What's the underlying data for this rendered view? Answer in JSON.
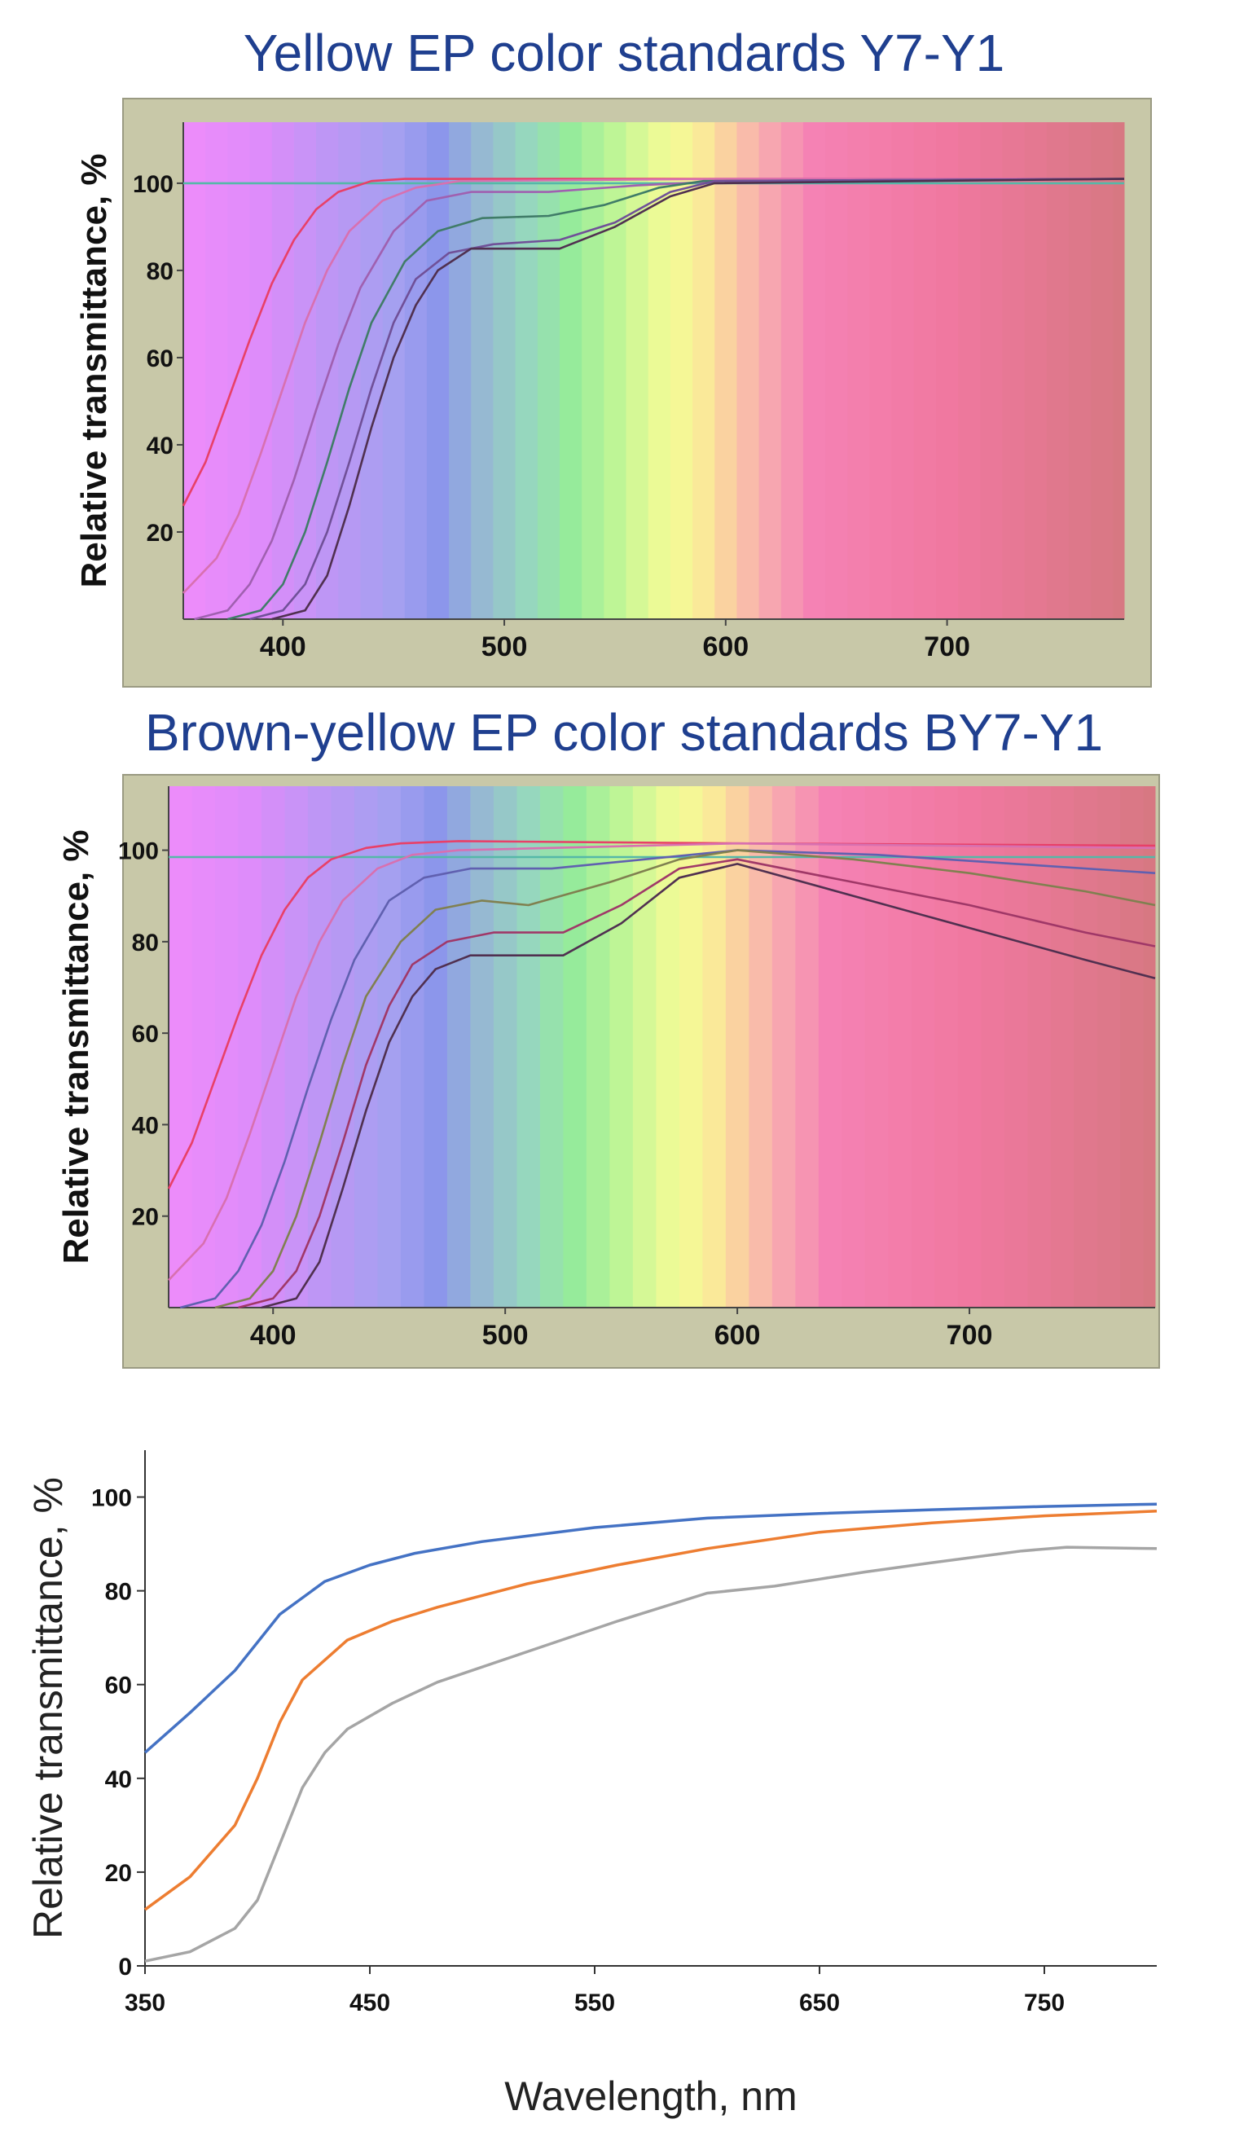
{
  "chart_data": [
    {
      "type": "line",
      "title": "Yellow EP color standards Y7-Y1",
      "xlabel": "",
      "ylabel": "Relative transmittance, %",
      "xlim": [
        355,
        780
      ],
      "ylim": [
        0,
        114
      ],
      "xticks": [
        400,
        500,
        600,
        700
      ],
      "yticks": [
        20,
        40,
        60,
        80,
        100
      ],
      "grid": false,
      "background": "visible-spectrum",
      "series": [
        {
          "color": "#55b8a8",
          "x": [
            355,
            780
          ],
          "y": [
            100,
            100
          ]
        },
        {
          "color": "#e84068",
          "x": [
            355,
            365,
            375,
            385,
            395,
            405,
            415,
            425,
            440,
            455,
            480,
            600,
            780
          ],
          "y": [
            26,
            36,
            50,
            64,
            77,
            87,
            94,
            98,
            100.5,
            101,
            101,
            101,
            101
          ]
        },
        {
          "color": "#d870b0",
          "x": [
            355,
            370,
            380,
            390,
            400,
            410,
            420,
            430,
            445,
            460,
            480,
            600,
            780
          ],
          "y": [
            6,
            14,
            24,
            38,
            53,
            68,
            80,
            89,
            96,
            99,
            100.5,
            101,
            101
          ]
        },
        {
          "color": "#a060b0",
          "x": [
            360,
            375,
            385,
            395,
            405,
            415,
            425,
            435,
            450,
            465,
            485,
            520,
            560,
            600,
            780
          ],
          "y": [
            0,
            2,
            8,
            18,
            32,
            48,
            63,
            76,
            89,
            96,
            98,
            98,
            99.5,
            100.5,
            101
          ]
        },
        {
          "color": "#407c68",
          "x": [
            375,
            390,
            400,
            410,
            420,
            430,
            440,
            455,
            470,
            490,
            520,
            545,
            570,
            590,
            780
          ],
          "y": [
            0,
            2,
            8,
            20,
            36,
            53,
            68,
            82,
            89,
            92,
            92.5,
            95,
            99,
            100.5,
            101
          ]
        },
        {
          "color": "#705098",
          "x": [
            385,
            400,
            410,
            420,
            430,
            440,
            450,
            460,
            475,
            495,
            525,
            550,
            575,
            595,
            780
          ],
          "y": [
            0,
            2,
            8,
            20,
            36,
            53,
            68,
            78,
            84,
            86,
            87,
            91,
            98,
            100.5,
            101
          ]
        },
        {
          "color": "#503050",
          "x": [
            395,
            410,
            420,
            430,
            440,
            450,
            460,
            470,
            485,
            500,
            525,
            550,
            575,
            595,
            780
          ],
          "y": [
            0,
            2,
            10,
            26,
            44,
            60,
            72,
            80,
            85,
            85,
            85,
            90,
            97,
            100,
            101
          ]
        }
      ]
    },
    {
      "type": "line",
      "title": "Brown-yellow EP color standards BY7-Y1",
      "xlabel": "",
      "ylabel": "Relative transmittance, %",
      "xlim": [
        355,
        780
      ],
      "ylim": [
        0,
        114
      ],
      "xticks": [
        400,
        500,
        600,
        700
      ],
      "yticks": [
        20,
        40,
        60,
        80,
        100
      ],
      "grid": false,
      "background": "visible-spectrum",
      "series": [
        {
          "color": "#55b8a8",
          "x": [
            355,
            780
          ],
          "y": [
            98.5,
            98.5
          ]
        },
        {
          "color": "#e84068",
          "x": [
            355,
            365,
            375,
            385,
            395,
            405,
            415,
            425,
            440,
            455,
            480,
            600,
            780
          ],
          "y": [
            26,
            36,
            50,
            64,
            77,
            87,
            94,
            98,
            100.5,
            101.5,
            102,
            101.5,
            101
          ]
        },
        {
          "color": "#d870b0",
          "x": [
            355,
            370,
            380,
            390,
            400,
            410,
            420,
            430,
            445,
            460,
            480,
            600,
            780
          ],
          "y": [
            6,
            14,
            24,
            38,
            53,
            68,
            80,
            89,
            96,
            99,
            100,
            101.5,
            100.5
          ]
        },
        {
          "color": "#6060b0",
          "x": [
            360,
            375,
            385,
            395,
            405,
            415,
            425,
            435,
            450,
            465,
            485,
            520,
            560,
            600,
            660,
            720,
            780
          ],
          "y": [
            0,
            2,
            8,
            18,
            32,
            48,
            63,
            76,
            89,
            94,
            96,
            96,
            98,
            100,
            99,
            97,
            95
          ]
        },
        {
          "color": "#808050",
          "x": [
            375,
            390,
            400,
            410,
            420,
            430,
            440,
            455,
            470,
            490,
            510,
            545,
            575,
            600,
            650,
            700,
            750,
            780
          ],
          "y": [
            0,
            2,
            8,
            20,
            36,
            53,
            68,
            80,
            87,
            89,
            88,
            93,
            98,
            100,
            98,
            95,
            91,
            88
          ]
        },
        {
          "color": "#a03868",
          "x": [
            385,
            400,
            410,
            420,
            430,
            440,
            450,
            460,
            475,
            495,
            525,
            550,
            575,
            600,
            650,
            700,
            750,
            780
          ],
          "y": [
            0,
            2,
            8,
            20,
            36,
            53,
            66,
            75,
            80,
            82,
            82,
            88,
            96,
            98,
            93,
            88,
            82,
            79
          ]
        },
        {
          "color": "#503050",
          "x": [
            395,
            410,
            420,
            430,
            440,
            450,
            460,
            470,
            485,
            505,
            525,
            550,
            575,
            600,
            650,
            700,
            750,
            780
          ],
          "y": [
            0,
            2,
            10,
            26,
            43,
            58,
            68,
            74,
            77,
            77,
            77,
            84,
            94,
            97,
            90,
            83,
            76,
            72
          ]
        }
      ]
    },
    {
      "type": "line",
      "title": "",
      "xlabel": "Wavelength, nm",
      "ylabel": "Relative transmittance, %",
      "xlim": [
        350,
        800
      ],
      "ylim": [
        0,
        110
      ],
      "xticks": [
        350,
        450,
        550,
        650,
        750
      ],
      "yticks": [
        0,
        20,
        40,
        60,
        80,
        100
      ],
      "grid": false,
      "series": [
        {
          "color": "#4472c4",
          "x": [
            350,
            370,
            390,
            410,
            430,
            450,
            470,
            500,
            550,
            600,
            650,
            700,
            750,
            800
          ],
          "y": [
            45.5,
            54,
            63,
            75,
            82,
            85.5,
            88,
            90.5,
            93.5,
            95.5,
            96.5,
            97.3,
            98,
            98.5
          ]
        },
        {
          "color": "#ed7d31",
          "x": [
            350,
            370,
            390,
            400,
            410,
            420,
            440,
            460,
            480,
            520,
            560,
            600,
            650,
            700,
            750,
            800
          ],
          "y": [
            12,
            19,
            30,
            40,
            52,
            61,
            69.5,
            73.5,
            76.5,
            81.5,
            85.5,
            89,
            92.5,
            94.5,
            96,
            97
          ]
        },
        {
          "color": "#a5a5a5",
          "x": [
            350,
            370,
            390,
            400,
            410,
            420,
            430,
            440,
            460,
            480,
            520,
            560,
            600,
            630,
            650,
            670,
            700,
            740,
            760,
            800
          ],
          "y": [
            1,
            3,
            8,
            14,
            26,
            38,
            45.5,
            50.5,
            56,
            60.5,
            67,
            73.5,
            79.5,
            81,
            82.5,
            84,
            86,
            88.5,
            89.3,
            89
          ]
        }
      ]
    }
  ]
}
